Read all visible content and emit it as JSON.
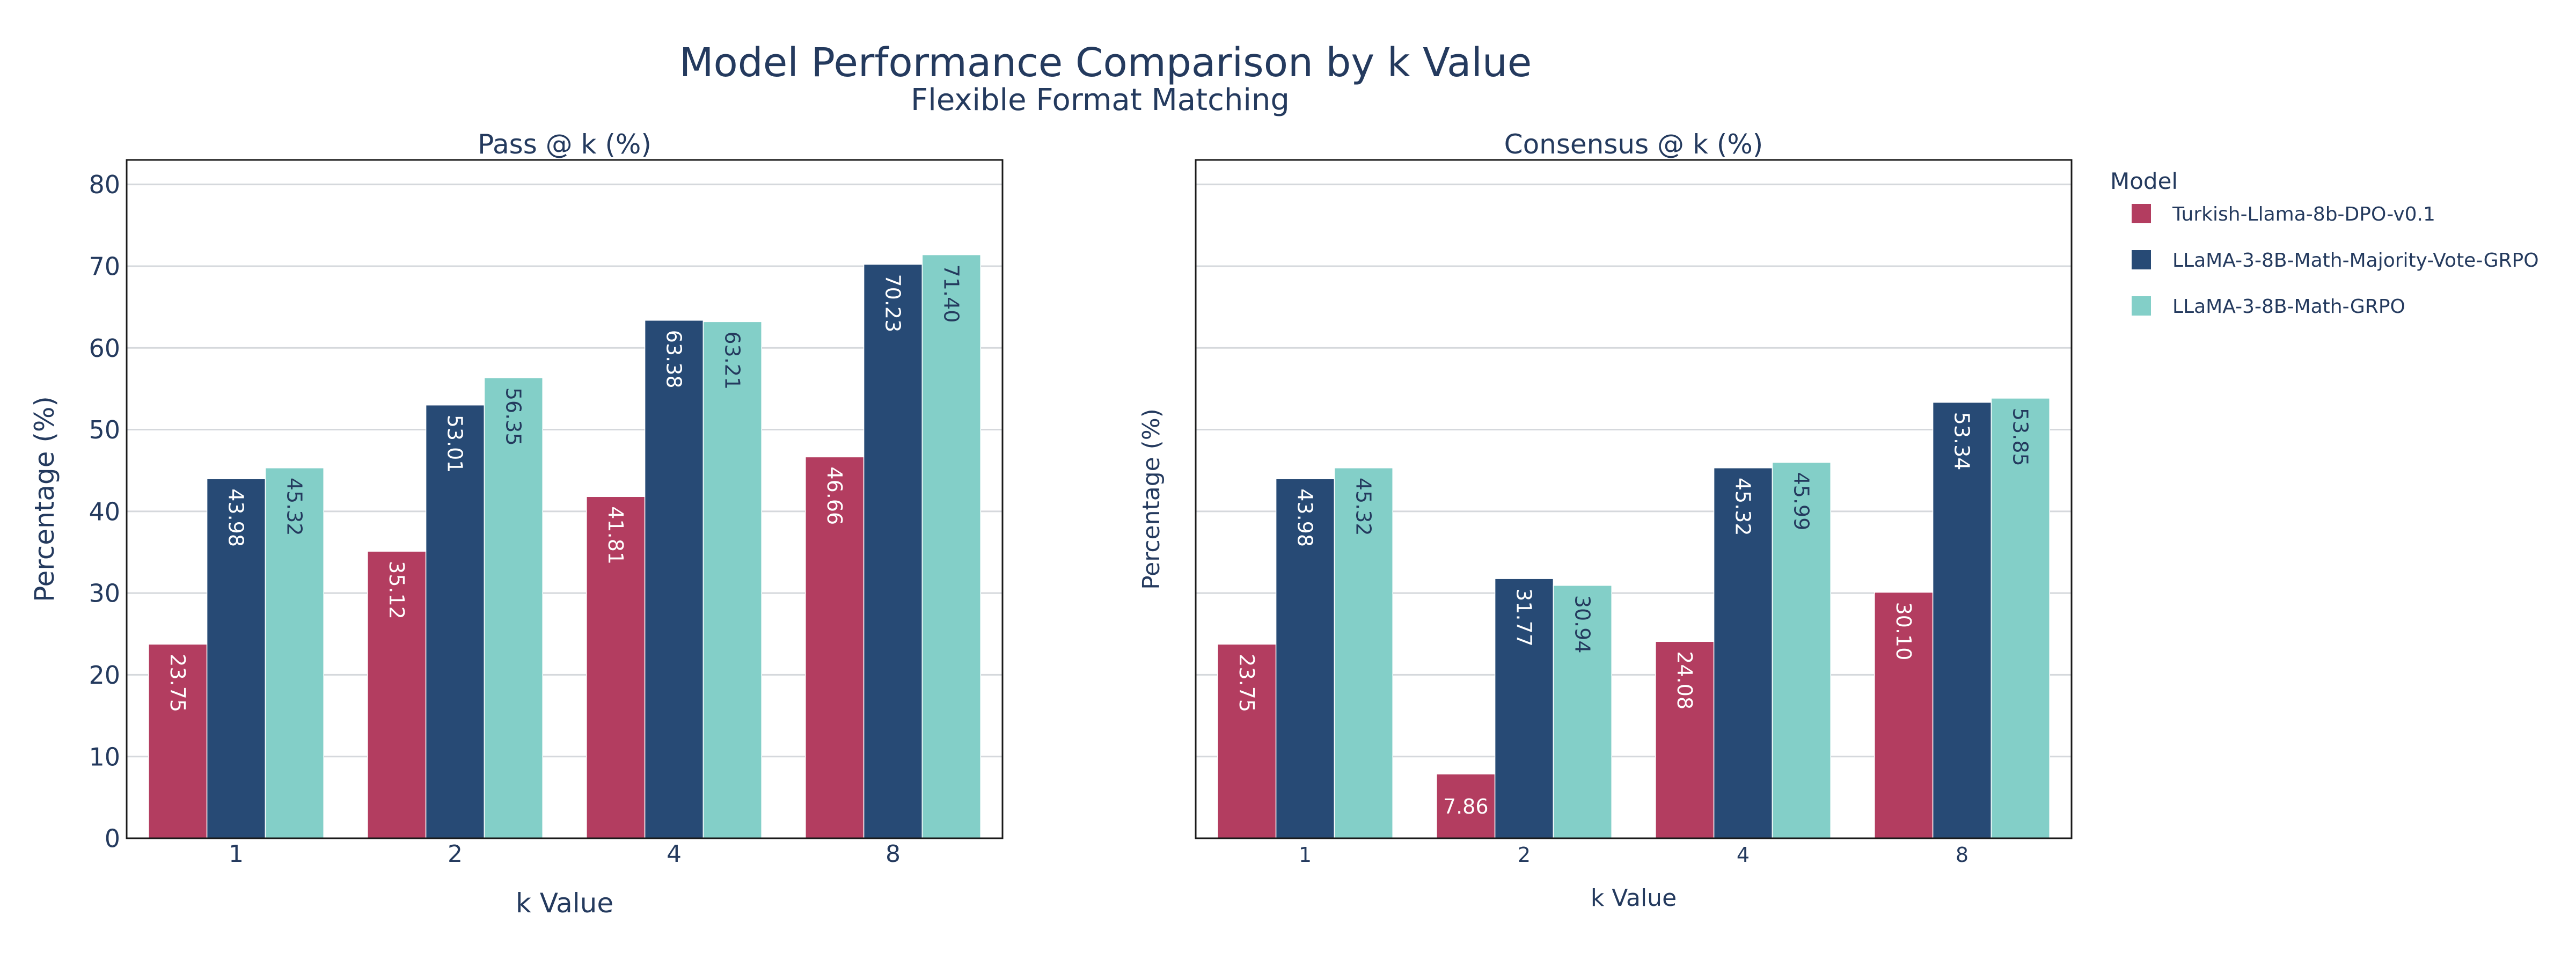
{
  "chart_title": "Model Performance Comparison by k Value",
  "chart_subtitle": "Flexible Format Matching",
  "legend": {
    "title": "Model",
    "placement": "right"
  },
  "colors": {
    "Turkish-Llama-8b-DPO-v0.1": "#b33d60",
    "LLaMA-3-8B-Math-Majority-Vote-GRPO": "#274a75",
    "LLaMA-3-8B-Math-GRPO": "#83cfc8",
    "text": "#243a5e",
    "grid": "#d5d8dc"
  },
  "chart_data": [
    {
      "type": "bar",
      "title": "Pass @ k (%)",
      "xlabel": "k Value",
      "ylabel": "Percentage (%)",
      "categories": [
        "1",
        "2",
        "4",
        "8"
      ],
      "ylim": [
        0,
        83
      ],
      "yticks": [
        0,
        10,
        20,
        30,
        40,
        50,
        60,
        70,
        80
      ],
      "grid": true,
      "series": [
        {
          "name": "Turkish-Llama-8b-DPO-v0.1",
          "values": [
            23.75,
            35.12,
            41.81,
            46.66
          ],
          "labels": [
            "23.75",
            "35.12",
            "41.81",
            "46.66"
          ]
        },
        {
          "name": "LLaMA-3-8B-Math-Majority-Vote-GRPO",
          "values": [
            43.98,
            53.01,
            63.38,
            70.23
          ],
          "labels": [
            "43.98",
            "53.01",
            "63.38",
            "70.23"
          ]
        },
        {
          "name": "LLaMA-3-8B-Math-GRPO",
          "values": [
            45.32,
            56.35,
            63.21,
            71.4
          ],
          "labels": [
            "45.32",
            "56.35",
            "63.21",
            "71.40"
          ]
        }
      ]
    },
    {
      "type": "bar",
      "title": "Consensus @ k (%)",
      "xlabel": "k Value",
      "ylabel": "Percentage (%)",
      "categories": [
        "1",
        "2",
        "4",
        "8"
      ],
      "ylim": [
        0,
        83
      ],
      "yticks": [],
      "grid": true,
      "series": [
        {
          "name": "Turkish-Llama-8b-DPO-v0.1",
          "values": [
            23.75,
            7.86,
            24.08,
            30.1
          ],
          "labels": [
            "23.75",
            "7.86",
            "24.08",
            "30.10"
          ]
        },
        {
          "name": "LLaMA-3-8B-Math-Majority-Vote-GRPO",
          "values": [
            43.98,
            31.77,
            45.32,
            53.34
          ],
          "labels": [
            "43.98",
            "31.77",
            "45.32",
            "53.34"
          ]
        },
        {
          "name": "LLaMA-3-8B-Math-GRPO",
          "values": [
            45.32,
            30.94,
            45.99,
            53.85
          ],
          "labels": [
            "45.32",
            "30.94",
            "45.99",
            "53.85"
          ]
        }
      ]
    }
  ]
}
